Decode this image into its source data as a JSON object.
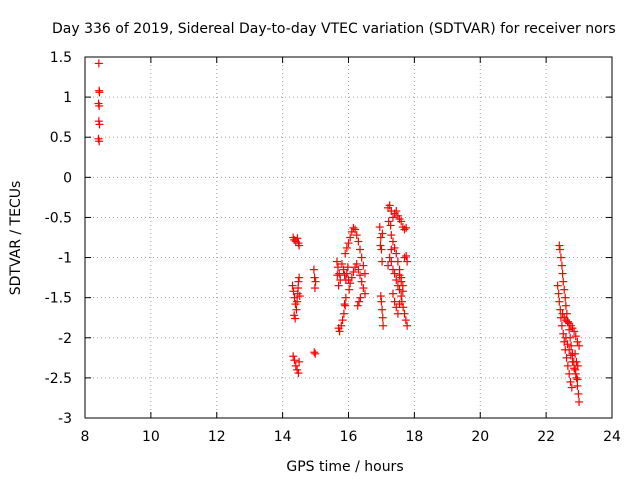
{
  "chart_data": {
    "type": "scatter",
    "title": "Day 336 of 2019, Sidereal Day-to-day VTEC variation (SDTVAR) for receiver nors",
    "xlabel": "GPS time / hours",
    "ylabel": "SDTVAR / TECUs",
    "xlim": [
      8,
      24
    ],
    "ylim": [
      -3,
      1.5
    ],
    "xticks": [
      8,
      10,
      12,
      14,
      16,
      18,
      20,
      22,
      24
    ],
    "yticks": [
      1.5,
      1,
      0.5,
      0,
      -0.5,
      -1,
      -1.5,
      -2,
      -2.5,
      -3
    ],
    "xtick_labels": [
      "8",
      "10",
      "12",
      "14",
      "16",
      "18",
      "20",
      "22",
      "24"
    ],
    "ytick_labels": [
      "1.5",
      "1",
      "0.5",
      "0",
      "-0.5",
      "-1",
      "-1.5",
      "-2",
      "-2.5",
      "-3"
    ],
    "grid": true,
    "marker": "+",
    "marker_color": "#ff0000",
    "series": [
      {
        "name": "SDTVAR",
        "points": [
          [
            8.42,
            1.42
          ],
          [
            8.43,
            1.08
          ],
          [
            8.44,
            1.06
          ],
          [
            8.41,
            0.92
          ],
          [
            8.43,
            0.89
          ],
          [
            8.42,
            0.7
          ],
          [
            8.44,
            0.66
          ],
          [
            8.41,
            0.48
          ],
          [
            8.43,
            0.45
          ],
          [
            14.32,
            -0.75
          ],
          [
            14.35,
            -0.78
          ],
          [
            14.4,
            -0.8
          ],
          [
            14.45,
            -0.76
          ],
          [
            14.48,
            -0.82
          ],
          [
            14.5,
            -0.85
          ],
          [
            14.3,
            -1.35
          ],
          [
            14.33,
            -1.42
          ],
          [
            14.36,
            -1.5
          ],
          [
            14.39,
            -1.58
          ],
          [
            14.42,
            -1.65
          ],
          [
            14.35,
            -1.72
          ],
          [
            14.38,
            -1.76
          ],
          [
            14.44,
            -1.55
          ],
          [
            14.46,
            -1.45
          ],
          [
            14.48,
            -1.3
          ],
          [
            14.5,
            -1.25
          ],
          [
            14.47,
            -1.38
          ],
          [
            14.52,
            -1.48
          ],
          [
            14.32,
            -2.23
          ],
          [
            14.36,
            -2.28
          ],
          [
            14.4,
            -2.35
          ],
          [
            14.44,
            -2.4
          ],
          [
            14.48,
            -2.44
          ],
          [
            14.5,
            -2.3
          ],
          [
            14.95,
            -1.15
          ],
          [
            14.97,
            -1.25
          ],
          [
            15.0,
            -1.3
          ],
          [
            14.98,
            -1.38
          ],
          [
            14.96,
            -2.18
          ],
          [
            14.99,
            -2.2
          ],
          [
            15.65,
            -1.05
          ],
          [
            15.68,
            -1.12
          ],
          [
            15.72,
            -1.2
          ],
          [
            15.75,
            -1.28
          ],
          [
            15.7,
            -1.35
          ],
          [
            15.66,
            -1.22
          ],
          [
            15.7,
            -1.88
          ],
          [
            15.73,
            -1.92
          ],
          [
            15.78,
            -1.85
          ],
          [
            15.82,
            -1.78
          ],
          [
            15.86,
            -1.7
          ],
          [
            15.9,
            -1.6
          ],
          [
            15.8,
            -1.08
          ],
          [
            15.85,
            -1.15
          ],
          [
            15.88,
            -1.22
          ],
          [
            15.92,
            -1.28
          ],
          [
            15.95,
            -1.2
          ],
          [
            15.98,
            -1.12
          ],
          [
            15.9,
            -0.95
          ],
          [
            15.95,
            -0.88
          ],
          [
            16.0,
            -0.82
          ],
          [
            16.05,
            -0.75
          ],
          [
            16.1,
            -0.68
          ],
          [
            16.15,
            -0.63
          ],
          [
            16.2,
            -0.65
          ],
          [
            16.25,
            -0.72
          ],
          [
            16.3,
            -0.8
          ],
          [
            16.35,
            -0.9
          ],
          [
            16.4,
            -1.0
          ],
          [
            16.45,
            -1.1
          ],
          [
            16.5,
            -1.2
          ],
          [
            16.0,
            -1.28
          ],
          [
            16.05,
            -1.32
          ],
          [
            16.1,
            -1.25
          ],
          [
            16.15,
            -1.18
          ],
          [
            16.2,
            -1.12
          ],
          [
            16.25,
            -1.08
          ],
          [
            16.3,
            -1.15
          ],
          [
            16.35,
            -1.22
          ],
          [
            16.4,
            -1.3
          ],
          [
            16.45,
            -1.38
          ],
          [
            16.5,
            -1.45
          ],
          [
            16.28,
            -1.6
          ],
          [
            16.32,
            -1.55
          ],
          [
            16.36,
            -1.5
          ],
          [
            15.88,
            -1.58
          ],
          [
            15.92,
            -1.5
          ],
          [
            16.02,
            -1.4
          ],
          [
            16.95,
            -0.62
          ],
          [
            16.98,
            -0.75
          ],
          [
            17.0,
            -0.9
          ],
          [
            17.02,
            -1.05
          ],
          [
            16.97,
            -0.85
          ],
          [
            17.03,
            -0.7
          ],
          [
            16.98,
            -1.48
          ],
          [
            17.0,
            -1.55
          ],
          [
            17.02,
            -1.65
          ],
          [
            17.04,
            -1.75
          ],
          [
            17.05,
            -1.85
          ],
          [
            17.2,
            -0.38
          ],
          [
            17.25,
            -0.35
          ],
          [
            17.3,
            -0.42
          ],
          [
            17.35,
            -0.5
          ],
          [
            17.28,
            -0.6
          ],
          [
            17.22,
            -0.55
          ],
          [
            17.4,
            -0.45
          ],
          [
            17.45,
            -0.42
          ],
          [
            17.5,
            -0.48
          ],
          [
            17.55,
            -0.52
          ],
          [
            17.6,
            -0.55
          ],
          [
            17.65,
            -0.62
          ],
          [
            17.7,
            -0.65
          ],
          [
            17.75,
            -0.63
          ],
          [
            17.3,
            -0.72
          ],
          [
            17.35,
            -0.8
          ],
          [
            17.4,
            -0.88
          ],
          [
            17.45,
            -0.95
          ],
          [
            17.5,
            -1.05
          ],
          [
            17.55,
            -1.15
          ],
          [
            17.6,
            -1.25
          ],
          [
            17.65,
            -1.35
          ],
          [
            17.3,
            -1.05
          ],
          [
            17.35,
            -1.15
          ],
          [
            17.4,
            -1.2
          ],
          [
            17.45,
            -1.28
          ],
          [
            17.5,
            -1.35
          ],
          [
            17.55,
            -1.4
          ],
          [
            17.35,
            -1.45
          ],
          [
            17.4,
            -1.55
          ],
          [
            17.45,
            -1.62
          ],
          [
            17.5,
            -1.7
          ],
          [
            17.55,
            -1.58
          ],
          [
            17.6,
            -1.48
          ],
          [
            17.62,
            -1.55
          ],
          [
            17.66,
            -1.62
          ],
          [
            17.7,
            -1.7
          ],
          [
            17.74,
            -1.78
          ],
          [
            17.78,
            -1.85
          ],
          [
            17.7,
            -1.0
          ],
          [
            17.75,
            -0.98
          ],
          [
            17.78,
            -1.05
          ],
          [
            17.3,
            -0.9
          ],
          [
            17.25,
            -1.0
          ],
          [
            17.2,
            -1.1
          ],
          [
            17.65,
            -1.42
          ],
          [
            17.6,
            -1.3
          ],
          [
            17.55,
            -1.22
          ],
          [
            22.4,
            -0.85
          ],
          [
            22.42,
            -0.9
          ],
          [
            22.45,
            -1.0
          ],
          [
            22.48,
            -1.1
          ],
          [
            22.5,
            -1.2
          ],
          [
            22.52,
            -1.3
          ],
          [
            22.55,
            -1.4
          ],
          [
            22.58,
            -1.5
          ],
          [
            22.6,
            -1.6
          ],
          [
            22.63,
            -1.7
          ],
          [
            22.66,
            -1.8
          ],
          [
            22.7,
            -1.9
          ],
          [
            22.73,
            -2.0
          ],
          [
            22.76,
            -2.1
          ],
          [
            22.8,
            -2.2
          ],
          [
            22.84,
            -2.3
          ],
          [
            22.88,
            -2.4
          ],
          [
            22.92,
            -2.5
          ],
          [
            22.95,
            -2.6
          ],
          [
            22.98,
            -2.7
          ],
          [
            23.0,
            -2.8
          ],
          [
            22.35,
            -1.35
          ],
          [
            22.38,
            -1.45
          ],
          [
            22.4,
            -1.55
          ],
          [
            22.43,
            -1.65
          ],
          [
            22.45,
            -1.75
          ],
          [
            22.48,
            -1.85
          ],
          [
            22.52,
            -1.95
          ],
          [
            22.55,
            -2.05
          ],
          [
            22.58,
            -2.15
          ],
          [
            22.62,
            -2.25
          ],
          [
            22.66,
            -2.35
          ],
          [
            22.7,
            -2.45
          ],
          [
            22.74,
            -2.55
          ],
          [
            22.78,
            -2.62
          ],
          [
            22.5,
            -1.7
          ],
          [
            22.55,
            -1.75
          ],
          [
            22.6,
            -1.78
          ],
          [
            22.65,
            -1.8
          ],
          [
            22.7,
            -1.82
          ],
          [
            22.75,
            -1.85
          ],
          [
            22.8,
            -1.88
          ],
          [
            22.85,
            -1.92
          ],
          [
            22.9,
            -1.98
          ],
          [
            22.95,
            -2.05
          ],
          [
            23.0,
            -2.1
          ],
          [
            22.6,
            -2.0
          ],
          [
            22.65,
            -2.08
          ],
          [
            22.7,
            -2.15
          ],
          [
            22.75,
            -2.22
          ],
          [
            22.8,
            -2.3
          ],
          [
            22.85,
            -2.38
          ],
          [
            22.9,
            -2.45
          ],
          [
            22.95,
            -2.52
          ],
          [
            22.88,
            -2.2
          ],
          [
            22.92,
            -2.3
          ],
          [
            22.96,
            -2.35
          ]
        ]
      }
    ]
  }
}
